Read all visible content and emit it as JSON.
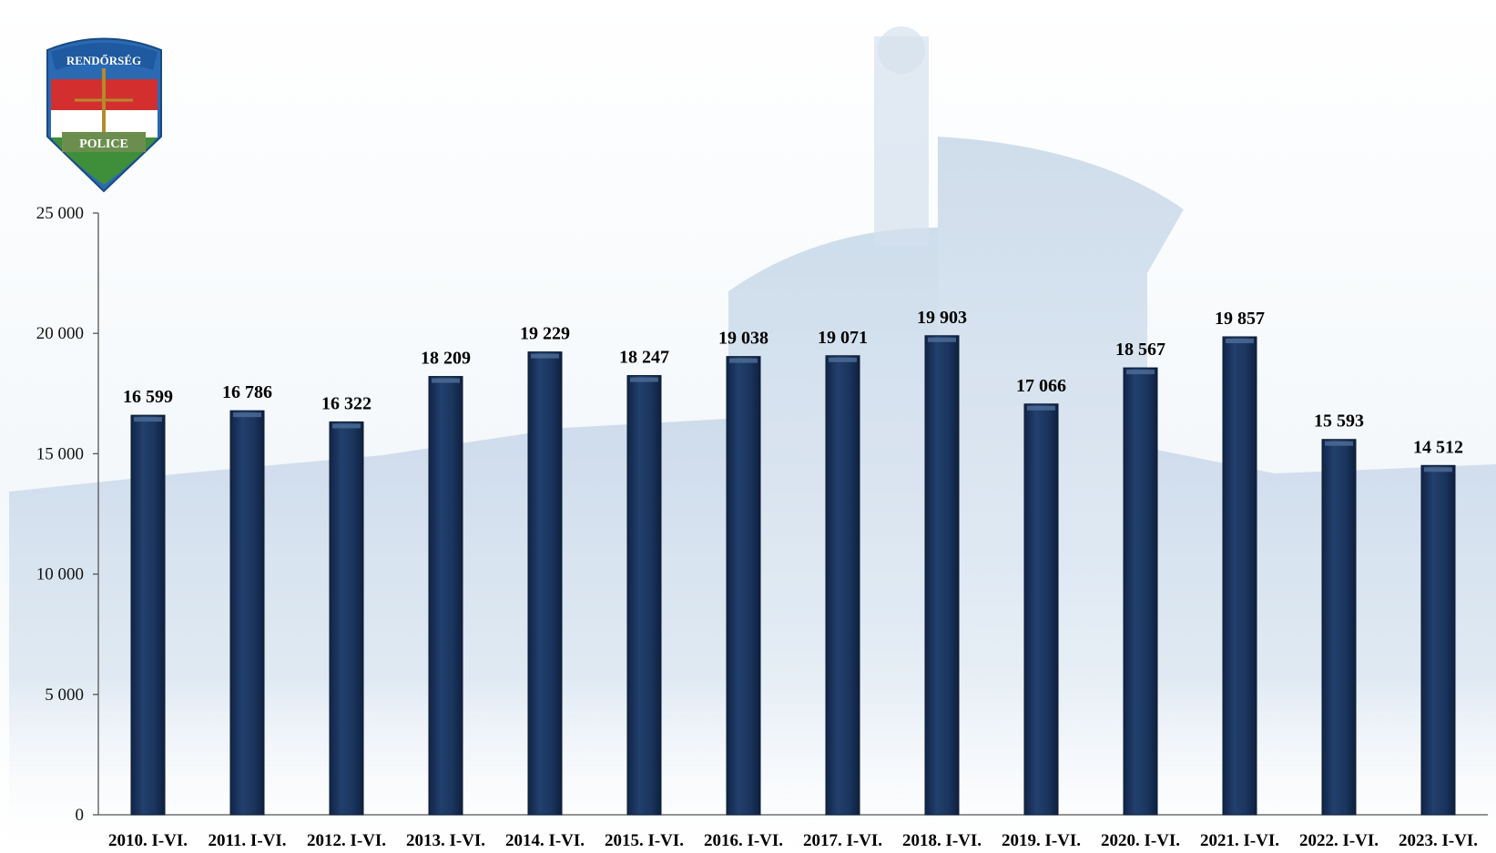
{
  "logo": {
    "top_text": "RENDŐRSÉG",
    "bottom_text": "POLICE",
    "colors": {
      "red": "#d32f2f",
      "white": "#ffffff",
      "green": "#3f8f3a",
      "blue": "#2a6ab3",
      "gold": "#b58a2a"
    }
  },
  "background": {
    "description_colors": [
      "#dfe9f3",
      "#c9d8e8",
      "#eef3f8"
    ]
  },
  "chart_data": {
    "type": "bar",
    "categories": [
      "2010. I-VI.",
      "2011. I-VI.",
      "2012. I-VI.",
      "2013. I-VI.",
      "2014. I-VI.",
      "2015. I-VI.",
      "2016. I-VI.",
      "2017. I-VI.",
      "2018. I-VI.",
      "2019. I-VI.",
      "2020. I-VI.",
      "2021. I-VI.",
      "2022. I-VI.",
      "2023. I-VI."
    ],
    "values": [
      16599,
      16786,
      16322,
      18209,
      19229,
      18247,
      19038,
      19071,
      19903,
      17066,
      18567,
      19857,
      15593,
      14512
    ],
    "data_labels": [
      "16 599",
      "16 786",
      "16 322",
      "18 209",
      "19 229",
      "18 247",
      "19 038",
      "19 071",
      "19 903",
      "17 066",
      "18 567",
      "19 857",
      "15 593",
      "14 512"
    ],
    "yticks": [
      0,
      5000,
      10000,
      15000,
      20000,
      25000
    ],
    "ytick_labels": [
      "0",
      "5 000",
      "10 000",
      "15 000",
      "20 000",
      "25 000"
    ],
    "ylim": [
      0,
      25000
    ],
    "title": "",
    "xlabel": "",
    "ylabel": "",
    "grid": false,
    "legend": "none",
    "bar_color": "#1b3358",
    "bar_edge_color": "#0d1c33"
  }
}
